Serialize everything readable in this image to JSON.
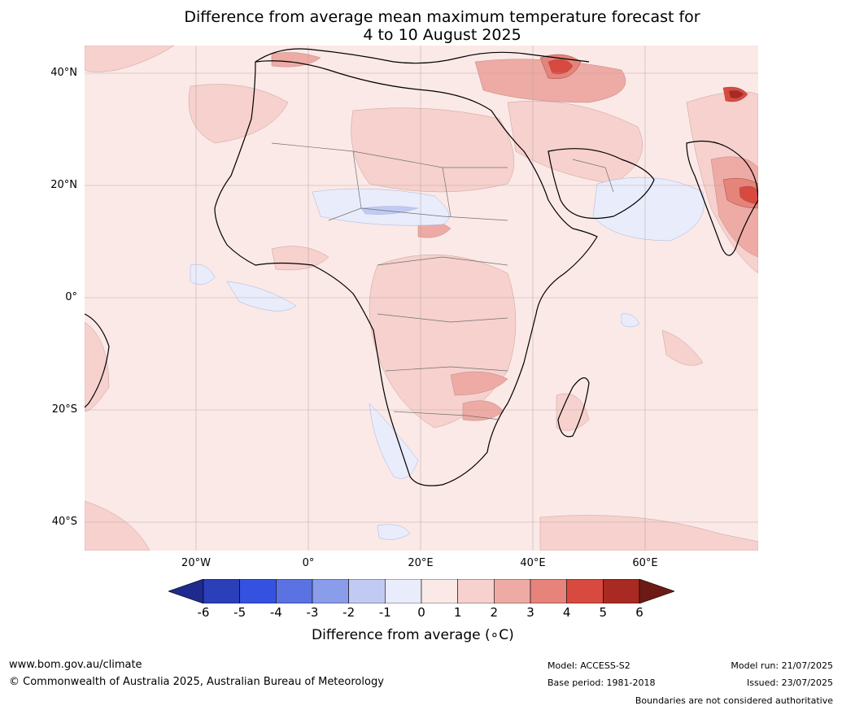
{
  "title": {
    "line1": "Difference from average mean maximum temperature forecast for",
    "line2": "4 to 10 August 2025"
  },
  "map": {
    "lat_labels": [
      "40°N",
      "20°N",
      "0°",
      "20°S",
      "40°S"
    ],
    "lon_labels": [
      "20°W",
      "0°",
      "20°E",
      "40°E",
      "60°E"
    ],
    "base_color": "#fbe9e7"
  },
  "colorbar": {
    "title": "Difference from average (∘C)",
    "ticks": [
      "-6",
      "-5",
      "-4",
      "-3",
      "-2",
      "-1",
      "0",
      "1",
      "2",
      "3",
      "4",
      "5",
      "6"
    ],
    "colors": [
      "#1e2a8e",
      "#2a3fb8",
      "#3451e0",
      "#5a72e2",
      "#8a9deb",
      "#c1caf2",
      "#e9ecfb",
      "#fbe9e7",
      "#f6d1cd",
      "#eeaaa4",
      "#e6837b",
      "#d84a40",
      "#a82a22",
      "#6e1a14"
    ]
  },
  "footer": {
    "website": "www.bom.gov.au/climate",
    "copyright": "© Commonwealth of Australia 2025, Australian Bureau of Meteorology",
    "model": "Model: ACCESS-S2",
    "base_period": "Base period: 1981-2018",
    "model_run": "Model run: 21/07/2025",
    "issued": "Issued: 23/07/2025",
    "disclaimer": "Boundaries are not considered authoritative"
  }
}
